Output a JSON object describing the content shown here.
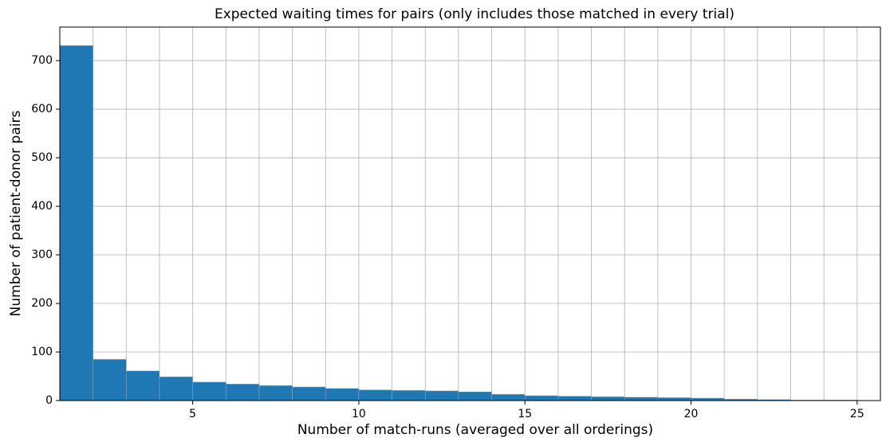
{
  "chart_data": {
    "type": "histogram",
    "title": "Expected waiting times for pairs (only includes those matched in every trial)",
    "x_label": "Number of match-runs (averaged over all orderings)",
    "y_label": "Number of patient-donor pairs",
    "bins": [
      1,
      2,
      3,
      4,
      5,
      6,
      7,
      8,
      9,
      10,
      11,
      12,
      13,
      14,
      15,
      16,
      17,
      18,
      19,
      20,
      21,
      22,
      23,
      24,
      25
    ],
    "values": [
      731,
      85,
      61,
      49,
      38,
      34,
      31,
      28,
      25,
      22,
      21,
      20,
      18,
      13,
      10,
      9,
      8,
      7,
      6,
      5,
      3,
      2,
      1,
      1
    ],
    "color": "#1f77b4",
    "xlim": [
      1,
      25.7
    ],
    "ylim": [
      0,
      769
    ],
    "xticks": [
      5,
      10,
      15,
      20,
      25
    ],
    "yticks": [
      0,
      100,
      200,
      300,
      400,
      500,
      600,
      700
    ],
    "grid": true
  }
}
